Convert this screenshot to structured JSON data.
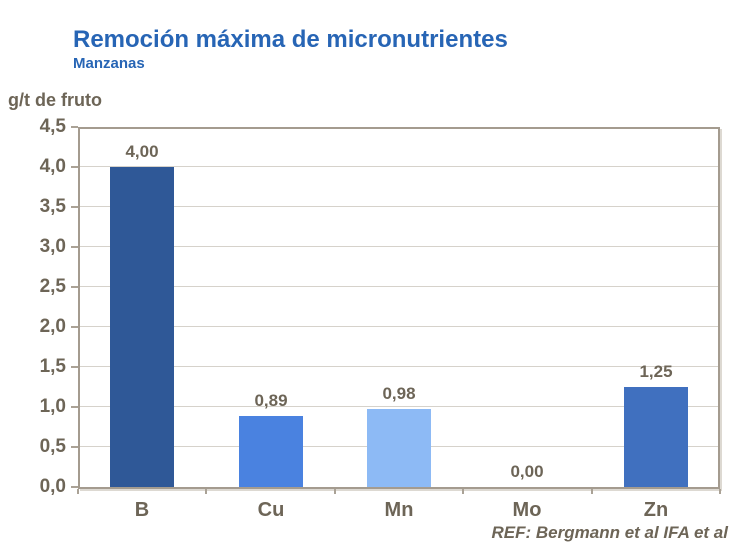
{
  "header": {
    "title": "Remoción máxima de micronutrientes",
    "subtitle": "Manzanas"
  },
  "axis": {
    "y_title": "g/t de fruto"
  },
  "footer": {
    "reference": "REF: Bergmann et al IFA et al"
  },
  "colors": {
    "title_blue": "#2765b5",
    "axis_text": "#6d6557",
    "frame": "#a49b8f",
    "gridline": "#d6d2cb"
  },
  "chart_data": {
    "type": "bar",
    "title": "Remoción máxima de micronutrientes",
    "subtitle": "Manzanas",
    "ylabel": "g/t de fruto",
    "categories": [
      "B",
      "Cu",
      "Mn",
      "Mo",
      "Zn"
    ],
    "values": [
      4.0,
      0.89,
      0.98,
      0.0,
      1.25
    ],
    "value_labels": [
      "4,00",
      "0,89",
      "0,98",
      "0,00",
      "1,25"
    ],
    "bar_colors": [
      "#2f5897",
      "#4a82e0",
      "#8dbaf5",
      "#2f5897",
      "#4070bf"
    ],
    "ylim": [
      0,
      4.5
    ],
    "ytick_step": 0.5,
    "ytick_labels": [
      "0,0",
      "0,5",
      "1,0",
      "1,5",
      "2,0",
      "2,5",
      "3,0",
      "3,5",
      "4,0",
      "4,5"
    ],
    "grid": true,
    "legend": false,
    "annotation": "REF: Bergmann et al IFA et al"
  }
}
